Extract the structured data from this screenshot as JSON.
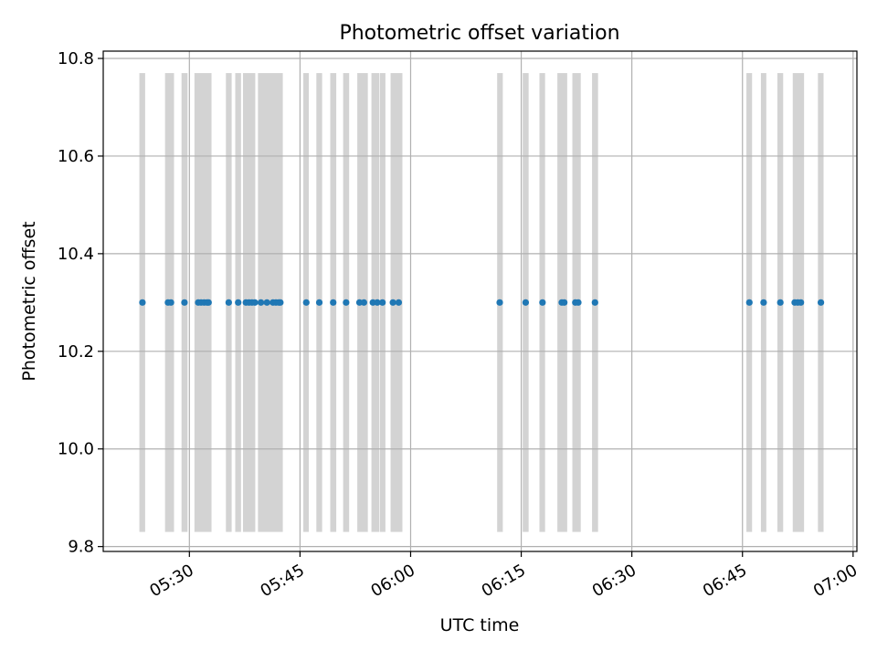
{
  "chart_data": {
    "type": "scatter",
    "title": "Photometric offset variation",
    "xlabel": "UTC time",
    "ylabel": "Photometric offset",
    "x_ticks": [
      "05:30",
      "05:45",
      "06:00",
      "06:15",
      "06:30",
      "06:45",
      "07:00"
    ],
    "y_ticks": [
      "9.8",
      "10.0",
      "10.2",
      "10.4",
      "10.6",
      "10.8"
    ],
    "xlim": [
      "05:18:19",
      "07:00:31"
    ],
    "ylim": [
      9.79,
      10.815
    ],
    "grid": true,
    "shaded_band_range": [
      9.83,
      10.77
    ],
    "exposure_bands": [
      [
        "05:23:13",
        "05:24:00"
      ],
      [
        "05:26:42",
        "05:27:55"
      ],
      [
        "05:28:56",
        "05:29:45"
      ],
      [
        "05:30:41",
        "05:33:00"
      ],
      [
        "05:34:57",
        "05:35:44"
      ],
      [
        "05:36:13",
        "05:37:00"
      ],
      [
        "05:37:16",
        "05:38:56"
      ],
      [
        "05:39:18",
        "05:42:40"
      ],
      [
        "05:45:27",
        "05:46:12"
      ],
      [
        "05:47:13",
        "05:48:00"
      ],
      [
        "05:49:06",
        "05:49:55"
      ],
      [
        "05:50:51",
        "05:51:40"
      ],
      [
        "05:52:46",
        "05:54:12"
      ],
      [
        "05:54:41",
        "05:55:45"
      ],
      [
        "05:55:50",
        "05:56:35"
      ],
      [
        "05:57:17",
        "05:58:53"
      ],
      [
        "06:11:44",
        "06:12:30"
      ],
      [
        "06:15:12",
        "06:16:00"
      ],
      [
        "06:17:28",
        "06:18:14"
      ],
      [
        "06:19:54",
        "06:21:14"
      ],
      [
        "06:21:56",
        "06:23:04"
      ],
      [
        "06:24:36",
        "06:25:25"
      ],
      [
        "06:45:32",
        "06:46:18"
      ],
      [
        "06:47:30",
        "06:48:14"
      ],
      [
        "06:49:44",
        "06:50:31"
      ],
      [
        "06:51:49",
        "06:53:21"
      ],
      [
        "06:55:14",
        "06:56:00"
      ]
    ],
    "series": [
      {
        "color": "#1f77b4",
        "x": [
          "05:23:38",
          "05:27:06",
          "05:27:30",
          "05:29:20",
          "05:31:12",
          "05:31:35",
          "05:32:00",
          "05:32:24",
          "05:32:36",
          "05:35:20",
          "05:36:37",
          "05:37:40",
          "05:38:05",
          "05:38:29",
          "05:38:53",
          "05:39:42",
          "05:40:31",
          "05:41:20",
          "05:41:44",
          "05:42:08",
          "05:42:20",
          "05:45:51",
          "05:47:37",
          "05:49:30",
          "05:51:15",
          "05:53:04",
          "05:53:40",
          "05:54:53",
          "05:55:29",
          "05:56:11",
          "05:57:36",
          "05:58:23",
          "06:12:05",
          "06:15:36",
          "06:17:53",
          "06:20:30",
          "06:20:50",
          "06:22:20",
          "06:22:44",
          "06:25:00",
          "06:45:56",
          "06:47:52",
          "06:50:08",
          "06:52:05",
          "06:52:30",
          "06:52:55",
          "06:55:38"
        ],
        "y": [
          10.3,
          10.3,
          10.3,
          10.3,
          10.3,
          10.3,
          10.3,
          10.3,
          10.3,
          10.3,
          10.3,
          10.3,
          10.3,
          10.3,
          10.3,
          10.3,
          10.3,
          10.3,
          10.3,
          10.3,
          10.3,
          10.3,
          10.3,
          10.3,
          10.3,
          10.3,
          10.3,
          10.3,
          10.3,
          10.3,
          10.3,
          10.3,
          10.3,
          10.3,
          10.3,
          10.3,
          10.3,
          10.3,
          10.3,
          10.3,
          10.3,
          10.3,
          10.3,
          10.3,
          10.3,
          10.3,
          10.3
        ]
      }
    ],
    "band_color": "#d3d3d3",
    "grid_color": "#b0b0b0"
  }
}
